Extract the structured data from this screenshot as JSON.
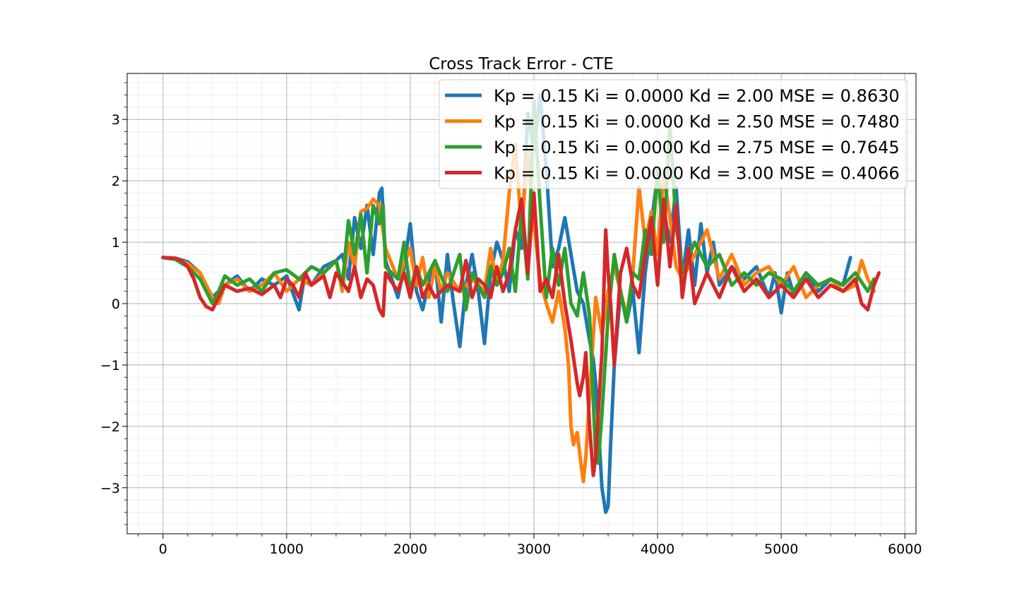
{
  "chart_data": {
    "type": "line",
    "title": "Cross Track Error - CTE",
    "xlabel": "",
    "ylabel": "",
    "xlim": [
      -290,
      6090
    ],
    "ylim": [
      -3.75,
      3.75
    ],
    "x_ticks": [
      0,
      1000,
      2000,
      3000,
      4000,
      5000,
      6000
    ],
    "y_ticks": [
      -3,
      -2,
      -1,
      0,
      1,
      2,
      3
    ],
    "y_tick_labels": [
      "−3",
      "−2",
      "−1",
      "0",
      "1",
      "2",
      "3"
    ],
    "grid": true,
    "minor_grid": true,
    "legend_position": "upper right",
    "series": [
      {
        "name": "Kp = 0.15 Ki = 0.0000 Kd = 2.00 MSE = 0.8630",
        "color": "#1f77b4",
        "x": [
          0,
          100,
          200,
          300,
          400,
          500,
          600,
          700,
          800,
          900,
          1000,
          1100,
          1150,
          1200,
          1300,
          1400,
          1450,
          1500,
          1550,
          1600,
          1650,
          1700,
          1750,
          1770,
          1800,
          1900,
          1950,
          2000,
          2050,
          2100,
          2150,
          2200,
          2250,
          2300,
          2350,
          2400,
          2450,
          2500,
          2550,
          2600,
          2650,
          2700,
          2750,
          2800,
          2850,
          2900,
          2950,
          3000,
          3050,
          3100,
          3150,
          3200,
          3250,
          3300,
          3350,
          3400,
          3450,
          3480,
          3500,
          3530,
          3550,
          3580,
          3600,
          3620,
          3650,
          3700,
          3750,
          3800,
          3850,
          3900,
          3950,
          4000,
          4050,
          4100,
          4150,
          4200,
          4250,
          4300,
          4350,
          4400,
          4450,
          4500,
          4600,
          4700,
          4800,
          4900,
          4950,
          5000,
          5050,
          5100,
          5200,
          5300,
          5400,
          5500,
          5560
        ],
        "y": [
          0.75,
          0.74,
          0.68,
          0.5,
          0.1,
          0.3,
          0.45,
          0.2,
          0.4,
          0.3,
          0.45,
          -0.1,
          0.5,
          0.3,
          0.6,
          0.7,
          0.8,
          0.4,
          1.4,
          0.9,
          1.6,
          0.8,
          1.8,
          1.88,
          0.7,
          0.1,
          0.6,
          1.3,
          0.2,
          -0.1,
          0.35,
          0.7,
          -0.3,
          0.8,
          0.0,
          -0.7,
          0.3,
          0.8,
          0.2,
          -0.65,
          0.5,
          1.0,
          0.7,
          0.2,
          1.2,
          0.9,
          3.1,
          2.5,
          3.4,
          2.2,
          0.6,
          0.9,
          1.4,
          0.8,
          0.2,
          0.0,
          -0.6,
          -0.9,
          -1.3,
          -2.3,
          -3.0,
          -3.4,
          -3.3,
          -2.3,
          -1.0,
          0.2,
          -0.3,
          0.2,
          -0.8,
          0.5,
          1.3,
          2.1,
          1.5,
          1.0,
          1.9,
          0.4,
          1.2,
          0.3,
          1.3,
          0.5,
          1.0,
          0.3,
          0.6,
          0.4,
          0.6,
          0.1,
          0.5,
          -0.15,
          0.5,
          0.15,
          0.5,
          0.2,
          0.4,
          0.3,
          0.75
        ]
      },
      {
        "name": "Kp = 0.15 Ki = 0.0000 Kd = 2.50 MSE = 0.7480",
        "color": "#ff7f0e",
        "x": [
          0,
          100,
          200,
          300,
          400,
          450,
          500,
          600,
          700,
          800,
          900,
          1000,
          1100,
          1200,
          1300,
          1400,
          1450,
          1500,
          1550,
          1600,
          1650,
          1700,
          1750,
          1800,
          1900,
          2000,
          2050,
          2100,
          2150,
          2200,
          2250,
          2300,
          2400,
          2500,
          2600,
          2650,
          2700,
          2750,
          2800,
          2850,
          2900,
          2950,
          3000,
          3050,
          3100,
          3150,
          3200,
          3250,
          3280,
          3300,
          3320,
          3350,
          3380,
          3400,
          3420,
          3450,
          3500,
          3550,
          3600,
          3650,
          3700,
          3750,
          3800,
          3850,
          3900,
          3950,
          4000,
          4050,
          4100,
          4150,
          4200,
          4300,
          4400,
          4500,
          4600,
          4700,
          4800,
          4900,
          5000,
          5100,
          5200,
          5300,
          5400,
          5500,
          5600,
          5650,
          5700,
          5750
        ],
        "y": [
          0.75,
          0.74,
          0.65,
          0.5,
          0.1,
          0.0,
          0.3,
          0.4,
          0.2,
          0.3,
          0.5,
          0.2,
          0.4,
          0.3,
          0.5,
          0.7,
          0.2,
          1.0,
          0.6,
          1.5,
          1.55,
          1.7,
          1.6,
          0.9,
          0.4,
          0.9,
          0.3,
          0.75,
          0.1,
          0.6,
          0.2,
          0.5,
          0.2,
          0.4,
          0.2,
          0.9,
          0.3,
          0.7,
          1.8,
          2.6,
          1.2,
          2.5,
          1.3,
          0.4,
          0.0,
          -0.3,
          0.2,
          -0.4,
          -1.0,
          -2.0,
          -2.3,
          -2.1,
          -2.6,
          -2.9,
          -2.5,
          -1.5,
          0.1,
          -0.5,
          0.2,
          0.6,
          0.2,
          -0.2,
          0.5,
          1.9,
          1.0,
          1.5,
          0.8,
          2.1,
          1.4,
          0.6,
          0.4,
          0.8,
          1.2,
          0.4,
          0.8,
          0.3,
          0.5,
          0.6,
          0.3,
          0.6,
          0.1,
          0.3,
          0.4,
          0.2,
          0.3,
          0.7,
          0.4,
          0.2
        ]
      },
      {
        "name": "Kp = 0.15 Ki = 0.0000 Kd = 2.75 MSE = 0.7645",
        "color": "#2ca02c",
        "x": [
          0,
          100,
          200,
          300,
          400,
          450,
          500,
          600,
          700,
          800,
          900,
          1000,
          1100,
          1200,
          1300,
          1400,
          1450,
          1500,
          1550,
          1600,
          1650,
          1700,
          1750,
          1780,
          1800,
          1900,
          1950,
          2000,
          2050,
          2100,
          2150,
          2200,
          2300,
          2400,
          2450,
          2500,
          2600,
          2650,
          2700,
          2750,
          2800,
          2850,
          2900,
          2950,
          3000,
          3050,
          3100,
          3150,
          3200,
          3250,
          3300,
          3350,
          3400,
          3450,
          3500,
          3520,
          3550,
          3600,
          3650,
          3700,
          3750,
          3800,
          3850,
          3900,
          3950,
          4000,
          4050,
          4100,
          4150,
          4200,
          4300,
          4400,
          4500,
          4600,
          4700,
          4800,
          4900,
          5000,
          5100,
          5200,
          5300,
          5400,
          5500,
          5600,
          5700,
          5750
        ],
        "y": [
          0.75,
          0.72,
          0.6,
          0.4,
          0.0,
          0.2,
          0.45,
          0.3,
          0.4,
          0.2,
          0.5,
          0.55,
          0.4,
          0.6,
          0.5,
          0.7,
          0.3,
          1.35,
          0.8,
          1.45,
          0.5,
          1.6,
          1.3,
          1.6,
          0.6,
          0.4,
          1.0,
          0.2,
          0.6,
          0.3,
          0.5,
          0.7,
          0.2,
          0.8,
          -0.1,
          0.5,
          0.1,
          0.6,
          0.3,
          0.5,
          0.9,
          0.2,
          1.5,
          0.4,
          3.3,
          1.6,
          0.1,
          0.9,
          0.3,
          0.9,
          0.0,
          -0.2,
          0.5,
          -0.2,
          -2.5,
          -2.6,
          -1.8,
          -0.2,
          0.8,
          0.2,
          -0.3,
          0.5,
          0.4,
          1.2,
          0.8,
          2.2,
          1.0,
          2.9,
          1.3,
          0.5,
          1.0,
          0.6,
          0.8,
          0.3,
          0.5,
          0.3,
          0.5,
          0.4,
          0.2,
          0.5,
          0.3,
          0.4,
          0.3,
          0.5,
          0.2,
          0.4
        ]
      },
      {
        "name": "Kp = 0.15 Ki = 0.0000 Kd = 3.00 MSE = 0.4066",
        "color": "#d62728",
        "x": [
          0,
          100,
          150,
          200,
          250,
          300,
          350,
          400,
          450,
          500,
          600,
          700,
          800,
          900,
          950,
          1000,
          1050,
          1100,
          1150,
          1200,
          1300,
          1350,
          1400,
          1500,
          1550,
          1600,
          1650,
          1700,
          1750,
          1780,
          1800,
          1900,
          1950,
          2000,
          2050,
          2100,
          2150,
          2200,
          2300,
          2400,
          2450,
          2500,
          2550,
          2600,
          2650,
          2700,
          2750,
          2800,
          2850,
          2900,
          2950,
          3000,
          3050,
          3100,
          3150,
          3200,
          3250,
          3300,
          3350,
          3370,
          3400,
          3420,
          3450,
          3480,
          3500,
          3520,
          3550,
          3580,
          3600,
          3620,
          3650,
          3700,
          3750,
          3800,
          3850,
          3900,
          3950,
          4000,
          4050,
          4100,
          4150,
          4200,
          4250,
          4300,
          4400,
          4500,
          4600,
          4700,
          4800,
          4900,
          5000,
          5100,
          5200,
          5300,
          5400,
          5500,
          5600,
          5650,
          5700,
          5750,
          5790
        ],
        "y": [
          0.75,
          0.74,
          0.7,
          0.6,
          0.4,
          0.1,
          -0.05,
          -0.1,
          0.1,
          0.3,
          0.2,
          0.25,
          0.15,
          0.3,
          0.1,
          0.4,
          0.3,
          0.1,
          0.5,
          0.3,
          0.45,
          0.1,
          0.5,
          0.2,
          0.6,
          0.1,
          0.4,
          0.3,
          -0.1,
          -0.2,
          0.5,
          0.2,
          0.5,
          0.1,
          0.6,
          0.1,
          0.3,
          0.1,
          0.3,
          0.2,
          0.7,
          0.1,
          0.4,
          0.3,
          0.1,
          0.6,
          0.2,
          0.5,
          1.2,
          1.7,
          0.5,
          1.8,
          0.2,
          0.4,
          0.1,
          0.8,
          0.0,
          -0.6,
          -1.3,
          -1.5,
          -1.2,
          -0.8,
          -2.0,
          -2.8,
          -2.5,
          -1.8,
          -0.8,
          1.2,
          0.5,
          0.0,
          -1.0,
          0.5,
          0.9,
          0.3,
          0.1,
          0.8,
          1.4,
          0.3,
          1.7,
          0.6,
          1.6,
          0.1,
          0.9,
          0.0,
          0.5,
          0.1,
          0.6,
          0.2,
          0.4,
          0.1,
          0.3,
          0.1,
          0.4,
          0.1,
          0.3,
          0.2,
          0.4,
          0.0,
          -0.1,
          0.3,
          0.5
        ]
      }
    ]
  }
}
